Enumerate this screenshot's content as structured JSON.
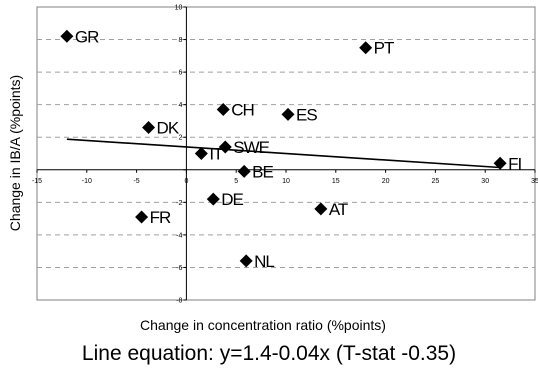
{
  "chart_data": {
    "type": "scatter",
    "title": "",
    "xlabel": "Change in concentration ratio (%points)",
    "ylabel": "Change in IB/A (%points)",
    "xlim": [
      -15,
      35
    ],
    "ylim": [
      -8,
      10
    ],
    "xticks": [
      -15,
      -10,
      -5,
      0,
      5,
      10,
      15,
      20,
      25,
      30,
      35
    ],
    "yticks": [
      -8,
      -6,
      -4,
      -2,
      0,
      2,
      4,
      6,
      8,
      10
    ],
    "grid": "horizontal dashed",
    "marker": "diamond",
    "marker_color": "#000000",
    "points": [
      {
        "label": "GR",
        "x": -12.0,
        "y": 8.2
      },
      {
        "label": "PT",
        "x": 18.0,
        "y": 7.5
      },
      {
        "label": "CH",
        "x": 3.7,
        "y": 3.7
      },
      {
        "label": "ES",
        "x": 10.2,
        "y": 3.4
      },
      {
        "label": "DK",
        "x": -3.8,
        "y": 2.6
      },
      {
        "label": "SWE",
        "x": 3.9,
        "y": 1.4
      },
      {
        "label": "IT",
        "x": 1.5,
        "y": 1.0
      },
      {
        "label": "FI",
        "x": 31.5,
        "y": 0.4
      },
      {
        "label": "BE",
        "x": 5.8,
        "y": -0.1
      },
      {
        "label": "DE",
        "x": 2.7,
        "y": -1.8
      },
      {
        "label": "AT",
        "x": 13.5,
        "y": -2.4
      },
      {
        "label": "FR",
        "x": -4.5,
        "y": -2.9
      },
      {
        "label": "NL",
        "x": 6.0,
        "y": -5.6
      }
    ],
    "trendline": {
      "intercept": 1.4,
      "slope": -0.04,
      "x_from": -12,
      "x_to": 31.5
    }
  },
  "caption": {
    "equation": "Line equation: y=1.4-0.04x (T-stat -0.35)"
  }
}
